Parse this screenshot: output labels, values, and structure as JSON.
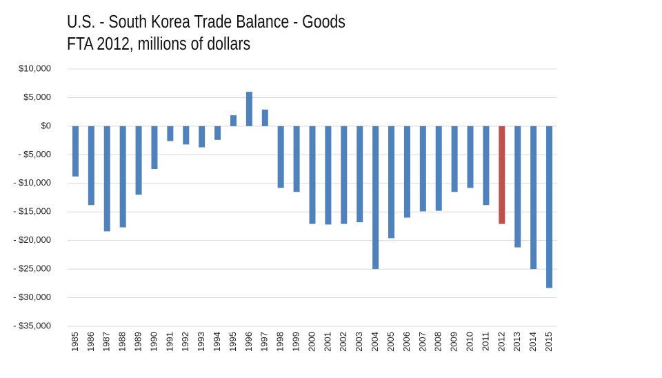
{
  "chart_data": {
    "type": "bar",
    "title": "U.S. - South Korea Trade Balance - Goods",
    "subtitle": "FTA 2012, millions of dollars",
    "categories": [
      "1985",
      "1986",
      "1987",
      "1988",
      "1989",
      "1990",
      "1991",
      "1992",
      "1993",
      "1994",
      "1995",
      "1996",
      "1997",
      "1998",
      "1999",
      "2000",
      "2001",
      "2002",
      "2003",
      "2004",
      "2005",
      "2006",
      "2007",
      "2008",
      "2009",
      "2010",
      "2011",
      "2012",
      "2013",
      "2014",
      "2015"
    ],
    "values": [
      -8800,
      -13800,
      -18400,
      -17700,
      -12000,
      -7500,
      -2600,
      -3200,
      -3700,
      -2400,
      1900,
      6000,
      2900,
      -10800,
      -11500,
      -17100,
      -17200,
      -17100,
      -16800,
      -25000,
      -19600,
      -16000,
      -14900,
      -14800,
      -11500,
      -10800,
      -13800,
      -17100,
      -21200,
      -25000,
      -28300
    ],
    "colors": [
      "#4f81bd",
      "#4f81bd",
      "#4f81bd",
      "#4f81bd",
      "#4f81bd",
      "#4f81bd",
      "#4f81bd",
      "#4f81bd",
      "#4f81bd",
      "#4f81bd",
      "#4f81bd",
      "#4f81bd",
      "#4f81bd",
      "#4f81bd",
      "#4f81bd",
      "#4f81bd",
      "#4f81bd",
      "#4f81bd",
      "#4f81bd",
      "#4f81bd",
      "#4f81bd",
      "#4f81bd",
      "#4f81bd",
      "#4f81bd",
      "#4f81bd",
      "#4f81bd",
      "#4f81bd",
      "#c0504d",
      "#4f81bd",
      "#4f81bd",
      "#4f81bd"
    ],
    "ylim": [
      -35000,
      10000
    ],
    "yticks": [
      {
        "value": 10000,
        "label": "$10,000"
      },
      {
        "value": 5000,
        "label": "$5,000"
      },
      {
        "value": 0,
        "label": "$0"
      },
      {
        "value": -5000,
        "label": "- $5,000"
      },
      {
        "value": -10000,
        "label": "- $10,000"
      },
      {
        "value": -15000,
        "label": "- $15,000"
      },
      {
        "value": -20000,
        "label": "- $20,000"
      },
      {
        "value": -25000,
        "label": "- $25,000"
      },
      {
        "value": -30000,
        "label": "- $30,000"
      },
      {
        "value": -35000,
        "label": "- $35,000"
      }
    ],
    "grid": true
  }
}
